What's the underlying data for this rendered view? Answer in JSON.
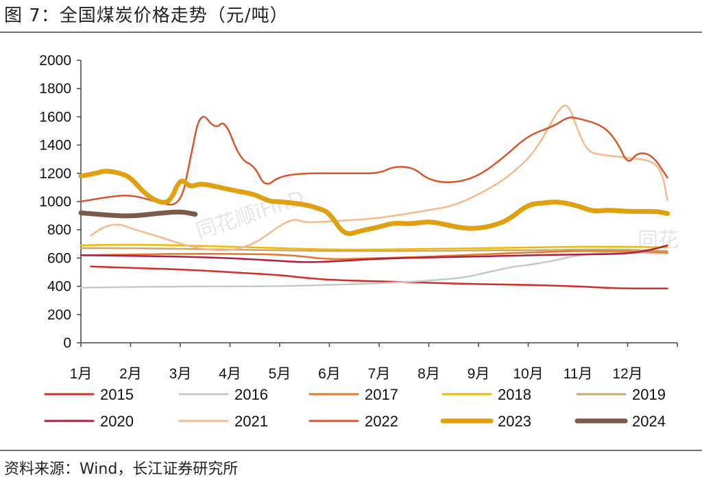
{
  "figure": {
    "title": "图 7：全国煤炭价格走势（元/吨）",
    "source": "资料来源：Wind，长江证券研究所",
    "watermark": "同花顺iFinD"
  },
  "chart_data": {
    "type": "line",
    "title": "",
    "xlabel": "",
    "ylabel": "",
    "ylim": [
      0,
      2000
    ],
    "yticks": [
      0,
      200,
      400,
      600,
      800,
      1000,
      1200,
      1400,
      1600,
      1800,
      2000
    ],
    "xlim": [
      1,
      13
    ],
    "categories": [
      "1月",
      "2月",
      "3月",
      "4月",
      "5月",
      "6月",
      "7月",
      "8月",
      "9月",
      "10月",
      "11月",
      "12月"
    ],
    "grid": false,
    "legend_position": "bottom",
    "series": [
      {
        "name": "2015",
        "color": "#d62a24",
        "width": 2.5,
        "points": [
          [
            1.2,
            540
          ],
          [
            2,
            530
          ],
          [
            3,
            520
          ],
          [
            4,
            500
          ],
          [
            5,
            480
          ],
          [
            5.5,
            460
          ],
          [
            6,
            445
          ],
          [
            7,
            435
          ],
          [
            8,
            425
          ],
          [
            9,
            415
          ],
          [
            10,
            410
          ],
          [
            11,
            400
          ],
          [
            11.5,
            390
          ],
          [
            12,
            385
          ],
          [
            12.8,
            385
          ]
        ]
      },
      {
        "name": "2016",
        "color": "#c8c8c8",
        "width": 2.5,
        "points": [
          [
            1,
            390
          ],
          [
            2,
            395
          ],
          [
            3,
            398
          ],
          [
            4,
            400
          ],
          [
            5,
            400
          ],
          [
            6,
            410
          ],
          [
            7,
            420
          ],
          [
            8,
            440
          ],
          [
            8.7,
            460
          ],
          [
            9.2,
            500
          ],
          [
            9.7,
            540
          ],
          [
            10,
            550
          ],
          [
            10.5,
            580
          ],
          [
            11,
            620
          ],
          [
            11.5,
            640
          ],
          [
            12,
            640
          ],
          [
            12.8,
            630
          ]
        ]
      },
      {
        "name": "2017",
        "color": "#e8752a",
        "width": 2.5,
        "points": [
          [
            1,
            620
          ],
          [
            2,
            625
          ],
          [
            3,
            630
          ],
          [
            4,
            630
          ],
          [
            5,
            625
          ],
          [
            5.5,
            610
          ],
          [
            6,
            590
          ],
          [
            7,
            600
          ],
          [
            8,
            610
          ],
          [
            9,
            625
          ],
          [
            10,
            640
          ],
          [
            11,
            650
          ],
          [
            12,
            650
          ],
          [
            12.8,
            640
          ]
        ]
      },
      {
        "name": "2018",
        "color": "#f2b800",
        "width": 2.5,
        "points": [
          [
            1,
            690
          ],
          [
            2,
            695
          ],
          [
            3,
            690
          ],
          [
            4,
            680
          ],
          [
            5,
            670
          ],
          [
            6,
            660
          ],
          [
            7,
            660
          ],
          [
            8,
            665
          ],
          [
            9,
            670
          ],
          [
            10,
            675
          ],
          [
            11,
            680
          ],
          [
            12,
            680
          ],
          [
            12.8,
            675
          ]
        ]
      },
      {
        "name": "2019",
        "color": "#c9a866",
        "width": 2.5,
        "points": [
          [
            1,
            670
          ],
          [
            2,
            670
          ],
          [
            3,
            665
          ],
          [
            4,
            660
          ],
          [
            5,
            655
          ],
          [
            6,
            650
          ],
          [
            7,
            650
          ],
          [
            8,
            650
          ],
          [
            9,
            655
          ],
          [
            10,
            655
          ],
          [
            11,
            660
          ],
          [
            12,
            660
          ],
          [
            12.8,
            650
          ]
        ]
      },
      {
        "name": "2020",
        "color": "#b31d3c",
        "width": 2.5,
        "points": [
          [
            1,
            620
          ],
          [
            2,
            615
          ],
          [
            3,
            610
          ],
          [
            4,
            600
          ],
          [
            5,
            580
          ],
          [
            5.5,
            570
          ],
          [
            6,
            575
          ],
          [
            7,
            595
          ],
          [
            8,
            605
          ],
          [
            9,
            610
          ],
          [
            10,
            620
          ],
          [
            11,
            625
          ],
          [
            12,
            630
          ],
          [
            12.5,
            660
          ],
          [
            12.8,
            690
          ]
        ]
      },
      {
        "name": "2021",
        "color": "#f6b98a",
        "width": 2.5,
        "points": [
          [
            1.2,
            760
          ],
          [
            1.5,
            830
          ],
          [
            1.8,
            840
          ],
          [
            2,
            810
          ],
          [
            2.5,
            760
          ],
          [
            3,
            700
          ],
          [
            3.5,
            660
          ],
          [
            4,
            650
          ],
          [
            4.5,
            700
          ],
          [
            5,
            830
          ],
          [
            5.3,
            880
          ],
          [
            5.5,
            850
          ],
          [
            6,
            860
          ],
          [
            7,
            880
          ],
          [
            8,
            940
          ],
          [
            8.5,
            970
          ],
          [
            9,
            1050
          ],
          [
            9.5,
            1150
          ],
          [
            10,
            1300
          ],
          [
            10.3,
            1450
          ],
          [
            10.6,
            1650
          ],
          [
            10.8,
            1700
          ],
          [
            11,
            1500
          ],
          [
            11.2,
            1350
          ],
          [
            11.5,
            1330
          ],
          [
            12,
            1310
          ],
          [
            12.5,
            1290
          ],
          [
            12.7,
            1200
          ],
          [
            12.8,
            1010
          ]
        ]
      },
      {
        "name": "2022",
        "color": "#d9542a",
        "width": 2.5,
        "points": [
          [
            1,
            1000
          ],
          [
            1.5,
            1030
          ],
          [
            2,
            1050
          ],
          [
            2.5,
            1000
          ],
          [
            3,
            960
          ],
          [
            3.2,
            1300
          ],
          [
            3.4,
            1650
          ],
          [
            3.7,
            1510
          ],
          [
            3.9,
            1580
          ],
          [
            4.2,
            1300
          ],
          [
            4.5,
            1250
          ],
          [
            4.7,
            1100
          ],
          [
            5,
            1180
          ],
          [
            5.5,
            1200
          ],
          [
            6,
            1200
          ],
          [
            6.5,
            1200
          ],
          [
            7,
            1200
          ],
          [
            7.3,
            1250
          ],
          [
            7.7,
            1240
          ],
          [
            8,
            1150
          ],
          [
            8.5,
            1130
          ],
          [
            9,
            1180
          ],
          [
            9.5,
            1310
          ],
          [
            10,
            1470
          ],
          [
            10.5,
            1530
          ],
          [
            10.8,
            1600
          ],
          [
            11,
            1590
          ],
          [
            11.5,
            1540
          ],
          [
            11.8,
            1420
          ],
          [
            12,
            1260
          ],
          [
            12.2,
            1350
          ],
          [
            12.5,
            1330
          ],
          [
            12.8,
            1170
          ]
        ]
      },
      {
        "name": "2023",
        "color": "#e0a010",
        "width": 7,
        "points": [
          [
            1,
            1180
          ],
          [
            1.3,
            1200
          ],
          [
            1.5,
            1220
          ],
          [
            1.8,
            1200
          ],
          [
            2,
            1170
          ],
          [
            2.3,
            1050
          ],
          [
            2.6,
            990
          ],
          [
            2.8,
            1000
          ],
          [
            3,
            1170
          ],
          [
            3.2,
            1100
          ],
          [
            3.4,
            1130
          ],
          [
            3.8,
            1100
          ],
          [
            4.2,
            1070
          ],
          [
            4.5,
            1050
          ],
          [
            4.8,
            1000
          ],
          [
            5,
            1000
          ],
          [
            5.5,
            980
          ],
          [
            5.8,
            950
          ],
          [
            6,
            920
          ],
          [
            6.3,
            760
          ],
          [
            6.6,
            790
          ],
          [
            7,
            820
          ],
          [
            7.3,
            850
          ],
          [
            7.6,
            840
          ],
          [
            8,
            860
          ],
          [
            8.3,
            840
          ],
          [
            8.7,
            810
          ],
          [
            9,
            810
          ],
          [
            9.3,
            830
          ],
          [
            9.6,
            870
          ],
          [
            10,
            980
          ],
          [
            10.3,
            990
          ],
          [
            10.6,
            1000
          ],
          [
            11,
            970
          ],
          [
            11.3,
            930
          ],
          [
            11.6,
            940
          ],
          [
            12,
            930
          ],
          [
            12.3,
            930
          ],
          [
            12.6,
            930
          ],
          [
            12.8,
            915
          ]
        ]
      },
      {
        "name": "2024",
        "color": "#7a5a48",
        "width": 7,
        "points": [
          [
            1,
            920
          ],
          [
            1.5,
            905
          ],
          [
            2,
            895
          ],
          [
            2.5,
            915
          ],
          [
            3,
            930
          ],
          [
            3.3,
            910
          ]
        ]
      }
    ]
  }
}
